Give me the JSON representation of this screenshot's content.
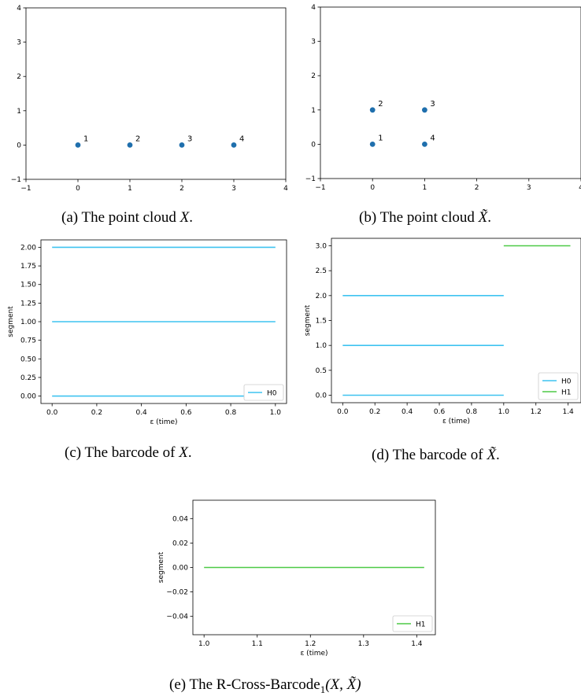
{
  "captions": {
    "a": {
      "label": "(a)",
      "text": "The point cloud",
      "sym": "X",
      "end": "."
    },
    "b": {
      "label": "(b)",
      "text": "The point cloud",
      "sym": "X̃",
      "end": "."
    },
    "c": {
      "label": "(c)",
      "text": "The barcode of",
      "sym": "X",
      "end": "."
    },
    "d": {
      "label": "(d)",
      "text": "The barcode of",
      "sym": "X̃",
      "end": "."
    },
    "e": {
      "label": "(e)",
      "text": "The R-Cross-Barcode",
      "sub": "1",
      "args": "(X, X̃)"
    }
  },
  "colors": {
    "H0": "#3fc3f0",
    "H1": "#4dca47",
    "point": "#1f6fad",
    "axis": "#000000"
  },
  "chart_data": [
    {
      "id": "a",
      "type": "scatter",
      "title": "",
      "xlabel": "",
      "ylabel": "",
      "xlim": [
        -1,
        4
      ],
      "ylim": [
        -1,
        4
      ],
      "xticks": [
        "−1",
        "0",
        "1",
        "2",
        "3",
        "4"
      ],
      "yticks": [
        "−1",
        "0",
        "1",
        "2",
        "3",
        "4"
      ],
      "points": [
        {
          "x": 0,
          "y": 0,
          "label": "1"
        },
        {
          "x": 1,
          "y": 0,
          "label": "2"
        },
        {
          "x": 2,
          "y": 0,
          "label": "3"
        },
        {
          "x": 3,
          "y": 0,
          "label": "4"
        }
      ]
    },
    {
      "id": "b",
      "type": "scatter",
      "title": "",
      "xlabel": "",
      "ylabel": "",
      "xlim": [
        -1,
        4
      ],
      "ylim": [
        -1,
        4
      ],
      "xticks": [
        "−1",
        "0",
        "1",
        "2",
        "3",
        "4"
      ],
      "yticks": [
        "−1",
        "0",
        "1",
        "2",
        "3",
        "4"
      ],
      "points": [
        {
          "x": 0,
          "y": 0,
          "label": "1"
        },
        {
          "x": 0,
          "y": 1,
          "label": "2"
        },
        {
          "x": 1,
          "y": 1,
          "label": "3"
        },
        {
          "x": 1,
          "y": 0,
          "label": "4"
        }
      ]
    },
    {
      "id": "c",
      "type": "line",
      "title": "",
      "xlabel": "ε (time)",
      "ylabel": "segment",
      "xlim": [
        -0.05,
        1.05
      ],
      "ylim": [
        -0.1,
        2.1
      ],
      "xticks": [
        "0.0",
        "0.2",
        "0.4",
        "0.6",
        "0.8",
        "1.0"
      ],
      "yticks": [
        "0.00",
        "0.25",
        "0.50",
        "0.75",
        "1.00",
        "1.25",
        "1.50",
        "1.75",
        "2.00"
      ],
      "legend": "bottom-right",
      "series": [
        {
          "name": "H0",
          "segments": [
            {
              "start": 0,
              "end": 1,
              "y": 0
            },
            {
              "start": 0,
              "end": 1,
              "y": 1
            },
            {
              "start": 0,
              "end": 1,
              "y": 2
            }
          ]
        }
      ]
    },
    {
      "id": "d",
      "type": "line",
      "title": "",
      "xlabel": "ε (time)",
      "ylabel": "segment",
      "xlim": [
        -0.07,
        1.48
      ],
      "ylim": [
        -0.15,
        3.15
      ],
      "xticks": [
        "0.0",
        "0.2",
        "0.4",
        "0.6",
        "0.8",
        "1.0",
        "1.2",
        "1.4"
      ],
      "yticks": [
        "0.0",
        "0.5",
        "1.0",
        "1.5",
        "2.0",
        "2.5",
        "3.0"
      ],
      "legend": "bottom-right",
      "series": [
        {
          "name": "H0",
          "segments": [
            {
              "start": 0,
              "end": 1,
              "y": 0
            },
            {
              "start": 0,
              "end": 1,
              "y": 1
            },
            {
              "start": 0,
              "end": 1,
              "y": 2
            }
          ]
        },
        {
          "name": "H1",
          "segments": [
            {
              "start": 1,
              "end": 1.414,
              "y": 3
            }
          ]
        }
      ]
    },
    {
      "id": "e",
      "type": "line",
      "title": "",
      "xlabel": "ε (time)",
      "ylabel": "segment",
      "xlim": [
        0.979,
        1.435
      ],
      "ylim": [
        -0.055,
        0.055
      ],
      "xticks": [
        "1.0",
        "1.1",
        "1.2",
        "1.3",
        "1.4"
      ],
      "yticks": [
        "−0.04",
        "−0.02",
        "0.00",
        "0.02",
        "0.04"
      ],
      "legend": "bottom-right",
      "series": [
        {
          "name": "H1",
          "segments": [
            {
              "start": 1,
              "end": 1.414,
              "y": 0
            }
          ]
        }
      ]
    }
  ]
}
